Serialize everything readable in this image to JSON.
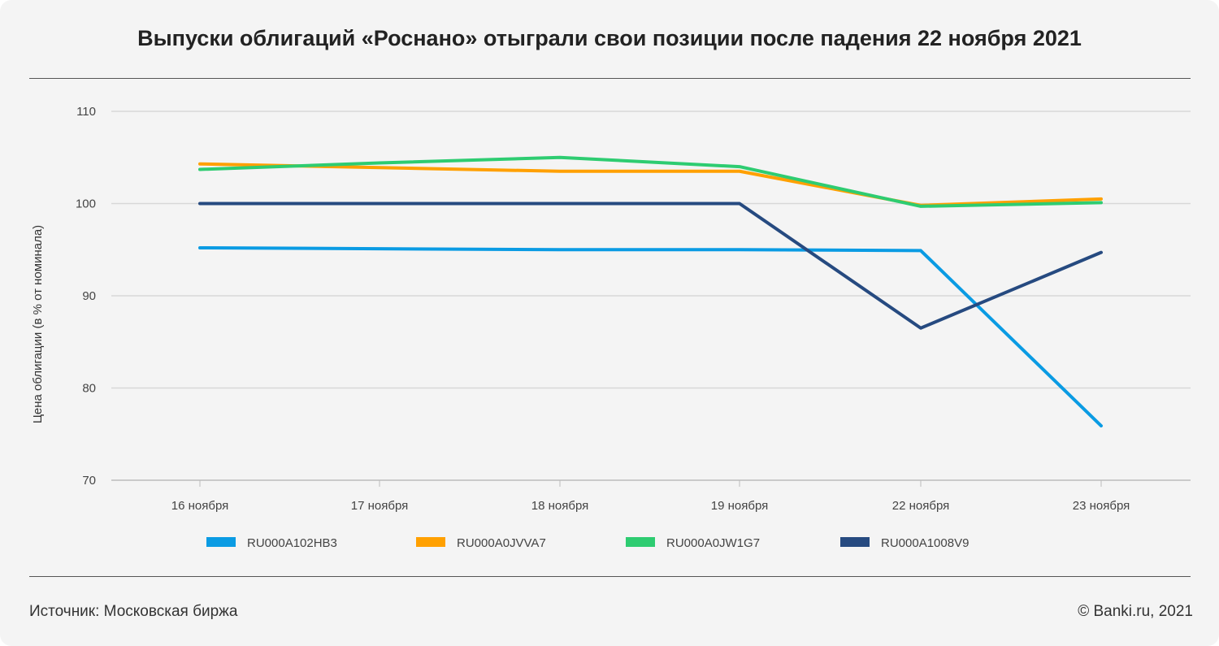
{
  "chart_data": {
    "type": "line",
    "title": "Выпуски облигаций «Роснано» отыграли свои позиции после падения 22 ноября 2021",
    "ylabel": "Цена облигации (в % от номинала)",
    "xlabel": "",
    "categories": [
      "16 ноября",
      "17 ноября",
      "18 ноября",
      "19 ноября",
      "22 ноября",
      "23 ноября"
    ],
    "ylim": [
      70,
      110
    ],
    "yticks": [
      70,
      80,
      90,
      100,
      110
    ],
    "grid": true,
    "legend": "bottom",
    "series": [
      {
        "name": "RU000A102HB3",
        "color": "#0a9be3",
        "values": [
          95.2,
          95.1,
          95.0,
          95.0,
          94.9,
          75.9
        ]
      },
      {
        "name": "RU000A0JVVA7",
        "color": "#ffa000",
        "values": [
          104.3,
          103.9,
          103.5,
          103.5,
          99.8,
          100.5
        ]
      },
      {
        "name": "RU000A0JW1G7",
        "color": "#2ecc71",
        "values": [
          103.7,
          104.4,
          105.0,
          104.0,
          99.7,
          100.1
        ]
      },
      {
        "name": "RU000A1008V9",
        "color": "#264a80",
        "values": [
          100,
          100,
          100,
          100,
          86.5,
          94.7
        ]
      }
    ]
  },
  "footer": {
    "source": "Источник: Московская биржа",
    "copyright": "© Banki.ru, 2021"
  }
}
